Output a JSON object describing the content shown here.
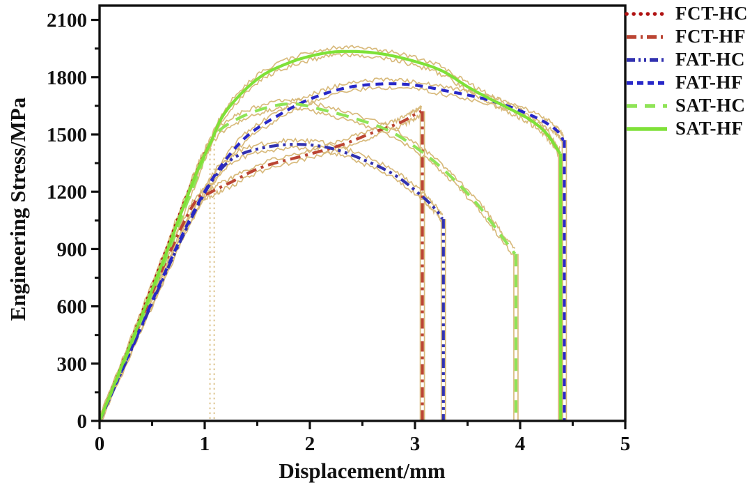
{
  "figure": {
    "xlabel": "Displacement/mm",
    "ylabel": "Engineering Stress/MPa"
  },
  "chart_data": {
    "type": "line",
    "title": "",
    "xlabel": "Displacement/mm",
    "ylabel": "Engineering Stress/MPa",
    "xlim": [
      0,
      5
    ],
    "ylim": [
      0,
      2175
    ],
    "x_ticks": [
      0,
      1,
      2,
      3,
      4,
      5
    ],
    "y_ticks": [
      0,
      300,
      600,
      900,
      1200,
      1500,
      1800,
      2100
    ],
    "x_minor_step": 0.5,
    "y_minor_step": 150,
    "grid": false,
    "legend_position": "outside-top-right",
    "envelope_color": "#d8ba7c",
    "axis_color": "#111111",
    "series": [
      {
        "name": "FCT-HC",
        "color": "#b01212",
        "style": "dotted",
        "fracture_x": 1.07,
        "fracture_stress": 1450,
        "fracture_line": "envelope",
        "points": [
          [
            0,
            0
          ],
          [
            0.3,
            420
          ],
          [
            0.6,
            850
          ],
          [
            0.85,
            1210
          ],
          [
            1.0,
            1400
          ],
          [
            1.06,
            1450
          ]
        ]
      },
      {
        "name": "FCT-HF",
        "color": "#bb4533",
        "style": "dashdot",
        "fracture_x": 3.07,
        "fracture_stress": 1622,
        "fracture_line": "series",
        "points": [
          [
            0,
            0
          ],
          [
            0.3,
            400
          ],
          [
            0.6,
            800
          ],
          [
            0.9,
            1140
          ],
          [
            1.05,
            1195
          ],
          [
            1.25,
            1250
          ],
          [
            1.55,
            1330
          ],
          [
            1.95,
            1390
          ],
          [
            2.3,
            1445
          ],
          [
            2.6,
            1510
          ],
          [
            2.85,
            1560
          ],
          [
            3.0,
            1605
          ],
          [
            3.06,
            1622
          ]
        ]
      },
      {
        "name": "FAT-HC",
        "color": "#3232b0",
        "style": "dashdotdot",
        "fracture_x": 3.27,
        "fracture_stress": 1058,
        "fracture_line": "series",
        "points": [
          [
            0,
            0
          ],
          [
            0.3,
            370
          ],
          [
            0.6,
            740
          ],
          [
            0.9,
            1090
          ],
          [
            1.1,
            1280
          ],
          [
            1.3,
            1385
          ],
          [
            1.6,
            1435
          ],
          [
            1.9,
            1448
          ],
          [
            2.2,
            1428
          ],
          [
            2.5,
            1370
          ],
          [
            2.8,
            1290
          ],
          [
            3.05,
            1185
          ],
          [
            3.2,
            1105
          ],
          [
            3.26,
            1058
          ]
        ]
      },
      {
        "name": "FAT-HF",
        "color": "#2828c8",
        "style": "dash",
        "fracture_x": 4.42,
        "fracture_stress": 1470,
        "fracture_line": "series",
        "points": [
          [
            0,
            0
          ],
          [
            0.3,
            375
          ],
          [
            0.6,
            750
          ],
          [
            0.9,
            1100
          ],
          [
            1.15,
            1330
          ],
          [
            1.4,
            1490
          ],
          [
            1.7,
            1600
          ],
          [
            2.0,
            1685
          ],
          [
            2.35,
            1745
          ],
          [
            2.7,
            1765
          ],
          [
            3.0,
            1758
          ],
          [
            3.3,
            1728
          ],
          [
            3.65,
            1688
          ],
          [
            3.95,
            1635
          ],
          [
            4.2,
            1575
          ],
          [
            4.35,
            1520
          ],
          [
            4.41,
            1470
          ]
        ]
      },
      {
        "name": "SAT-HC",
        "color": "#8fe457",
        "style": "longdash",
        "fracture_x": 3.96,
        "fracture_stress": 875,
        "fracture_line": "series",
        "points": [
          [
            0,
            0
          ],
          [
            0.3,
            400
          ],
          [
            0.6,
            810
          ],
          [
            0.9,
            1240
          ],
          [
            1.08,
            1480
          ],
          [
            1.3,
            1578
          ],
          [
            1.6,
            1642
          ],
          [
            1.85,
            1660
          ],
          [
            2.1,
            1632
          ],
          [
            2.45,
            1580
          ],
          [
            2.78,
            1512
          ],
          [
            3.1,
            1395
          ],
          [
            3.35,
            1275
          ],
          [
            3.6,
            1130
          ],
          [
            3.8,
            985
          ],
          [
            3.95,
            875
          ]
        ]
      },
      {
        "name": "SAT-HF",
        "color": "#7fe138",
        "style": "solid",
        "fracture_x": 4.385,
        "fracture_stress": 1400,
        "fracture_line": "series",
        "points": [
          [
            0,
            0
          ],
          [
            0.3,
            410
          ],
          [
            0.6,
            830
          ],
          [
            0.9,
            1270
          ],
          [
            1.05,
            1450
          ],
          [
            1.2,
            1620
          ],
          [
            1.5,
            1790
          ],
          [
            1.8,
            1875
          ],
          [
            2.1,
            1922
          ],
          [
            2.35,
            1935
          ],
          [
            2.65,
            1925
          ],
          [
            2.95,
            1890
          ],
          [
            3.25,
            1835
          ],
          [
            3.5,
            1750
          ],
          [
            3.7,
            1690
          ],
          [
            3.9,
            1635
          ],
          [
            4.1,
            1575
          ],
          [
            4.25,
            1505
          ],
          [
            4.38,
            1400
          ]
        ]
      }
    ]
  }
}
